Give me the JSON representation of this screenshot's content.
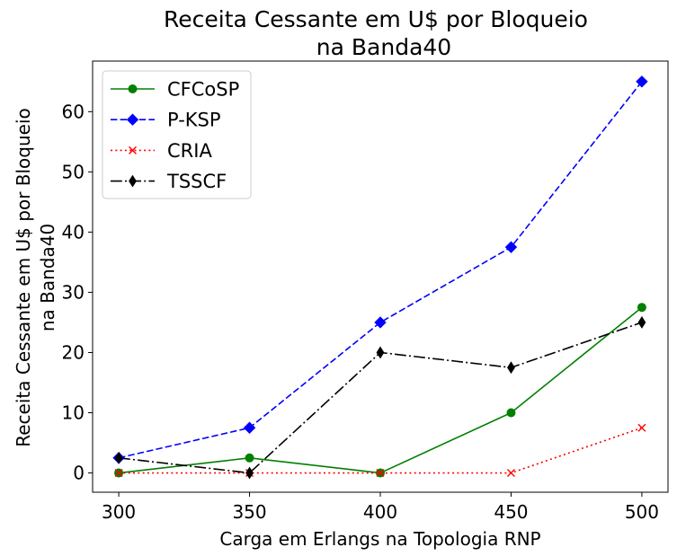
{
  "chart_data": {
    "type": "line",
    "title_lines": [
      "Receita Cessante em U$ por Bloqueio",
      "na Banda40"
    ],
    "xlabel": "Carga em Erlangs na Topologia RNP",
    "ylabel_lines": [
      "Receita Cessante em U$ por Bloqueio",
      "na Banda40"
    ],
    "x": [
      300,
      350,
      400,
      450,
      500
    ],
    "x_ticks": [
      300,
      350,
      400,
      450,
      500
    ],
    "y_ticks": [
      0,
      10,
      20,
      30,
      40,
      50,
      60
    ],
    "xlim": [
      290,
      510
    ],
    "ylim": [
      -3.2,
      68.4
    ],
    "grid": false,
    "legend_position": "top-left",
    "series": [
      {
        "name": "CFCoSP",
        "values": [
          0,
          2.5,
          0,
          10,
          27.5
        ],
        "color": "#008000",
        "linestyle": "solid",
        "marker": "circle"
      },
      {
        "name": "P-KSP",
        "values": [
          2.5,
          7.5,
          25,
          37.5,
          65
        ],
        "color": "#0000ff",
        "linestyle": "dashed",
        "marker": "diamond"
      },
      {
        "name": "CRIA",
        "values": [
          0,
          0,
          0,
          0,
          7.5
        ],
        "color": "#ff0000",
        "linestyle": "dotted",
        "marker": "x"
      },
      {
        "name": "TSSCF",
        "values": [
          2.5,
          0,
          20,
          17.5,
          25
        ],
        "color": "#000000",
        "linestyle": "dashdot",
        "marker": "thin-diamond"
      }
    ]
  }
}
